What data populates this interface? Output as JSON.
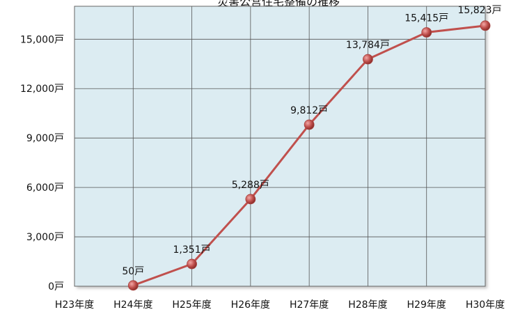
{
  "chart_data": {
    "type": "line",
    "title": "災害公営住宅整備の推移",
    "categories": [
      "H23年度",
      "H24年度",
      "H25年度",
      "H26年度",
      "H27年度",
      "H28年度",
      "H29年度",
      "H30年度"
    ],
    "series": [
      {
        "values": [
          null,
          50,
          1351,
          5288,
          9812,
          13784,
          15415,
          15823
        ],
        "labels": [
          null,
          "50戸",
          "1,351戸",
          "5,288戸",
          "9,812戸",
          "13,784戸",
          "15,415戸",
          "15,823戸"
        ]
      }
    ],
    "y_ticks": [
      0,
      3000,
      6000,
      9000,
      12000,
      15000
    ],
    "y_tick_labels": [
      "0戸",
      "3,000戸",
      "6,000戸",
      "9,000戸",
      "12,000戸",
      "15,000戸"
    ],
    "ylim": [
      0,
      17000
    ],
    "grid": true,
    "colors": {
      "plot_background": "#dcecf2",
      "line": "#c0504d",
      "marker": "#c0504d",
      "grid": "#555555"
    }
  }
}
